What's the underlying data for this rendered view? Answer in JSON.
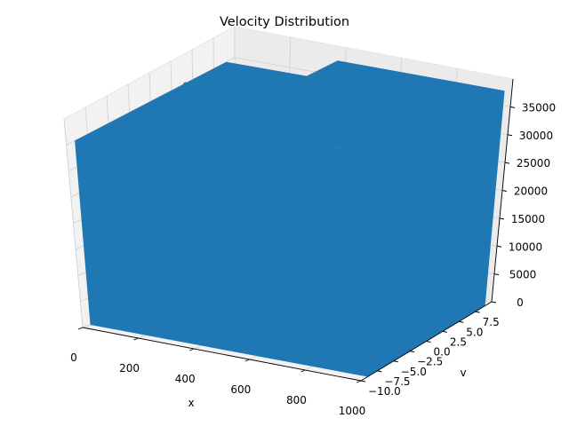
{
  "chart_data": {
    "type": "scatter",
    "projection": "3d",
    "title": "Velocity Distribution",
    "xlabel": "x",
    "ylabel": "v",
    "zlabel": "",
    "xlim": [
      0,
      1000
    ],
    "ylim": [
      -10,
      10
    ],
    "zlim": [
      0,
      40000
    ],
    "x_ticks": [
      0,
      200,
      400,
      600,
      800,
      1000
    ],
    "y_ticks": [
      -10.0,
      -7.5,
      -5.0,
      -2.5,
      0.0,
      2.5,
      5.0,
      7.5
    ],
    "z_ticks": [
      0,
      5000,
      10000,
      15000,
      20000,
      25000,
      30000,
      35000
    ],
    "x_tick_labels": [
      "0",
      "200",
      "400",
      "600",
      "800",
      "1000"
    ],
    "y_tick_labels": [
      "−10.0",
      "−7.5",
      "−5.0",
      "−2.5",
      "0.0",
      "2.5",
      "5.0",
      "7.5"
    ],
    "z_tick_labels": [
      "0",
      "5000",
      "10000",
      "15000",
      "20000",
      "25000",
      "30000",
      "35000"
    ],
    "series": [
      {
        "color": "#1f77b4",
        "marker": "o",
        "distribution": [
          {
            "x": [
              0,
              400
            ],
            "v": [
              -9,
              9
            ],
            "z": [
              0,
              35000
            ]
          },
          {
            "x": [
              400,
              1000
            ],
            "v": [
              -9,
              9
            ],
            "z": [
              0,
              38500
            ]
          }
        ]
      }
    ],
    "grid": true
  }
}
